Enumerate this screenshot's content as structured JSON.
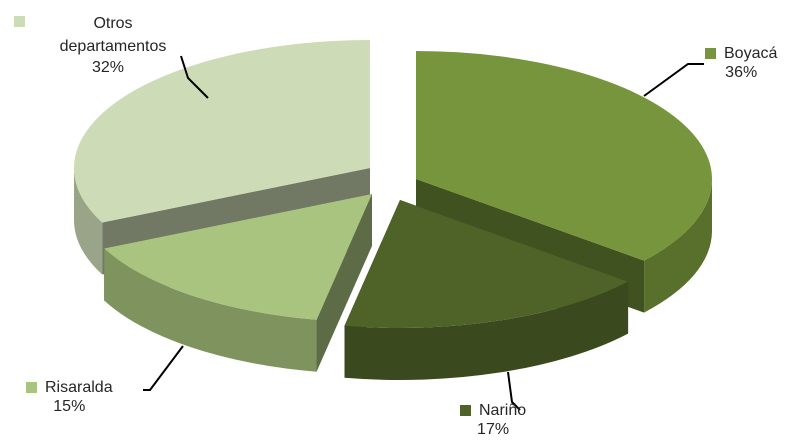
{
  "chart_data": {
    "type": "pie",
    "style": "3d-exploded",
    "slices": [
      {
        "label": "Boyacá",
        "value": 36,
        "pct_label": "36%",
        "color": "#77953c"
      },
      {
        "label": "Nariño",
        "value": 17,
        "pct_label": "17%",
        "color": "#4f6228"
      },
      {
        "label": "Risaralda",
        "value": 15,
        "pct_label": "15%",
        "color": "#a9c47f"
      },
      {
        "label": "Otros departamentos",
        "value": 32,
        "pct_label": "32%",
        "color": "#cddbb6"
      }
    ]
  }
}
